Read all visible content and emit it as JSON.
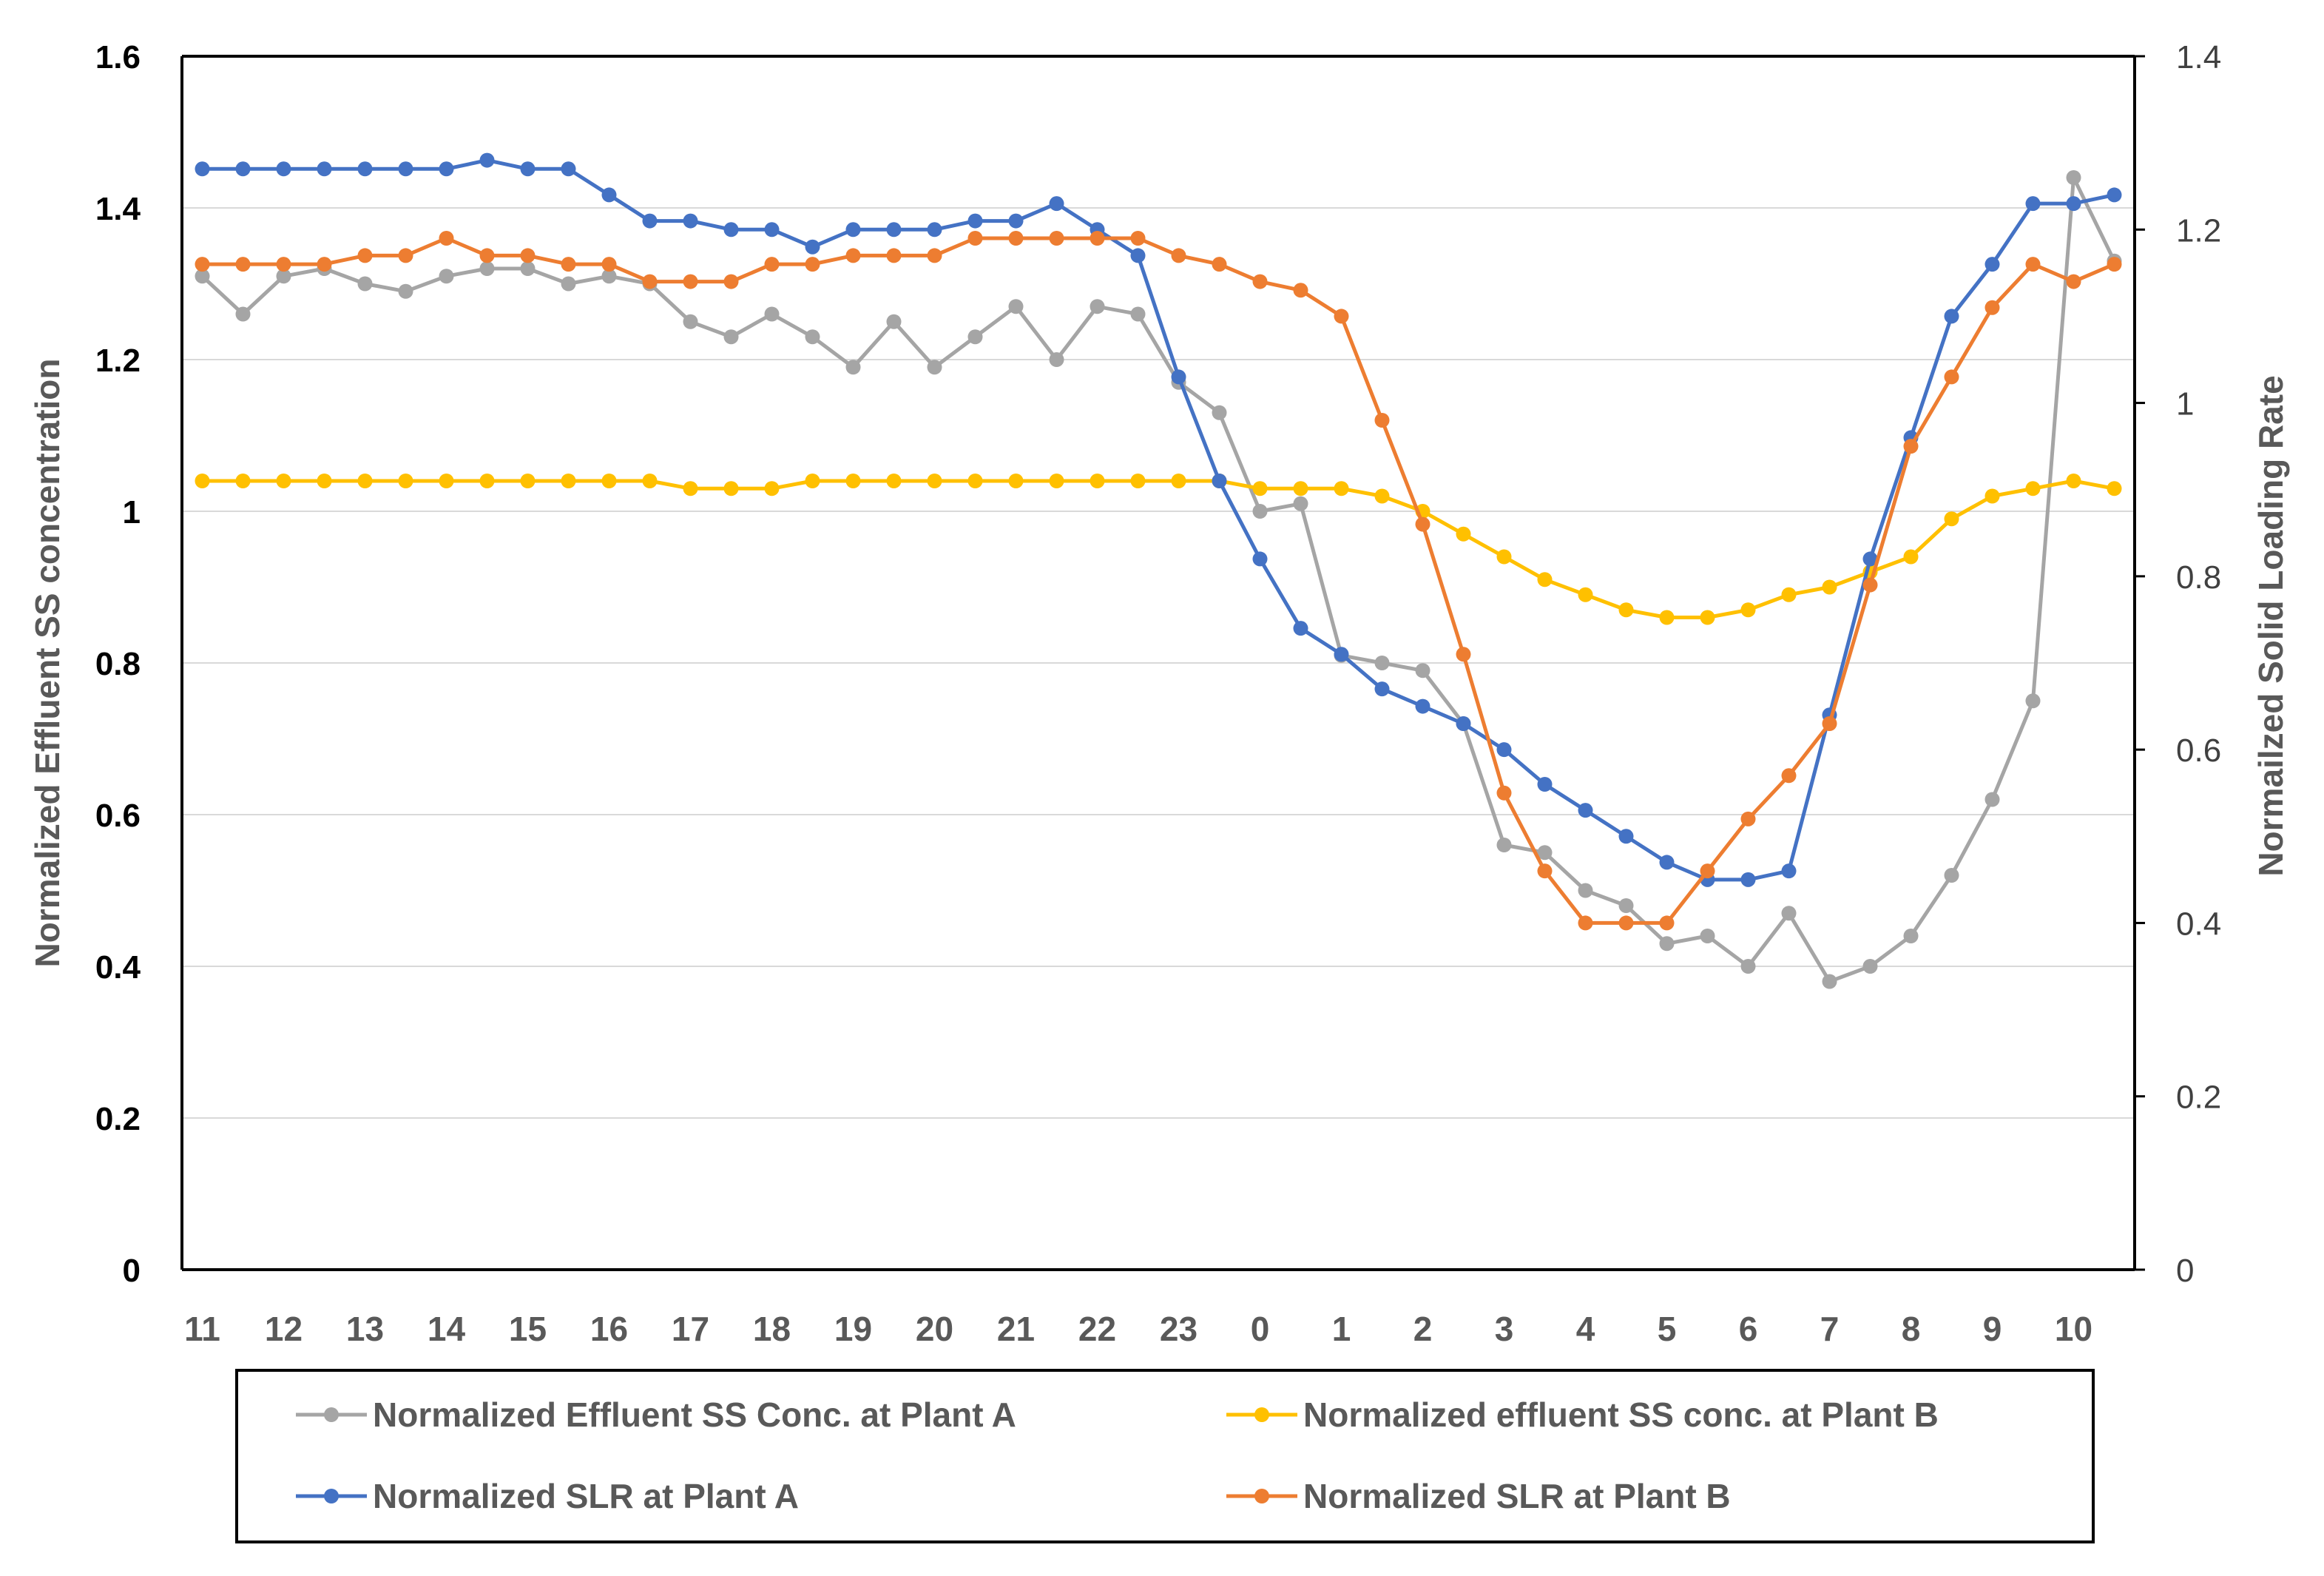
{
  "chart_data": {
    "type": "line",
    "title": "",
    "xlabel": "",
    "ylabel": "Normalized Effluent SS concentration",
    "y2label": "Normailzed Solid Loading Rate",
    "ylim": [
      0,
      1.6
    ],
    "y2lim": [
      0,
      1.4
    ],
    "y_ticks": [
      "0",
      "0.2",
      "0.4",
      "0.6",
      "0.8",
      "1",
      "1.2",
      "1.4",
      "1.6"
    ],
    "y2_ticks": [
      "0",
      "0.2",
      "0.4",
      "0.6",
      "0.8",
      "1",
      "1.2",
      "1.4"
    ],
    "x_tick_labels": [
      "11",
      "12",
      "13",
      "14",
      "15",
      "16",
      "17",
      "18",
      "19",
      "20",
      "21",
      "22",
      "23",
      "0",
      "1",
      "2",
      "3",
      "4",
      "5",
      "6",
      "7",
      "8",
      "9",
      "10"
    ],
    "grid": true,
    "legend_position": "bottom",
    "series": [
      {
        "name": "Normalized Effluent SS Conc. at Plant A",
        "axis": "left",
        "color": "#A5A5A5",
        "values": [
          1.31,
          1.26,
          1.31,
          1.32,
          1.3,
          1.29,
          1.31,
          1.32,
          1.32,
          1.3,
          1.31,
          1.3,
          1.25,
          1.23,
          1.26,
          1.23,
          1.19,
          1.25,
          1.19,
          1.23,
          1.27,
          1.2,
          1.27,
          1.26,
          1.17,
          1.13,
          1.0,
          1.01,
          0.81,
          0.8,
          0.79,
          0.72,
          0.56,
          0.55,
          0.5,
          0.48,
          0.43,
          0.44,
          0.4,
          0.47,
          0.38,
          0.4,
          0.44,
          0.52,
          0.62,
          0.75,
          1.44,
          1.33
        ]
      },
      {
        "name": "Normalized effluent SS conc. at Plant B",
        "axis": "left",
        "color": "#FFC000",
        "values": [
          1.04,
          1.04,
          1.04,
          1.04,
          1.04,
          1.04,
          1.04,
          1.04,
          1.04,
          1.04,
          1.04,
          1.04,
          1.03,
          1.03,
          1.03,
          1.04,
          1.04,
          1.04,
          1.04,
          1.04,
          1.04,
          1.04,
          1.04,
          1.04,
          1.04,
          1.04,
          1.03,
          1.03,
          1.03,
          1.02,
          1.0,
          0.97,
          0.94,
          0.91,
          0.89,
          0.87,
          0.86,
          0.86,
          0.87,
          0.89,
          0.9,
          0.92,
          0.94,
          0.99,
          1.02,
          1.03,
          1.04,
          1.03
        ]
      },
      {
        "name": "Normalized SLR at Plant A",
        "axis": "right",
        "color": "#4472C4",
        "values": [
          1.27,
          1.27,
          1.27,
          1.27,
          1.27,
          1.27,
          1.27,
          1.28,
          1.27,
          1.27,
          1.24,
          1.21,
          1.21,
          1.2,
          1.2,
          1.18,
          1.2,
          1.2,
          1.2,
          1.21,
          1.21,
          1.23,
          1.2,
          1.17,
          1.03,
          0.91,
          0.82,
          0.74,
          0.71,
          0.67,
          0.65,
          0.63,
          0.6,
          0.56,
          0.53,
          0.5,
          0.47,
          0.45,
          0.45,
          0.46,
          0.64,
          0.82,
          0.96,
          1.1,
          1.16,
          1.23,
          1.23,
          1.24
        ]
      },
      {
        "name": "Normalized SLR at Plant B",
        "axis": "right",
        "color": "#ED7D31",
        "values": [
          1.16,
          1.16,
          1.16,
          1.16,
          1.17,
          1.17,
          1.19,
          1.17,
          1.17,
          1.16,
          1.16,
          1.14,
          1.14,
          1.14,
          1.16,
          1.16,
          1.17,
          1.17,
          1.17,
          1.19,
          1.19,
          1.19,
          1.19,
          1.19,
          1.17,
          1.16,
          1.14,
          1.13,
          1.1,
          0.98,
          0.86,
          0.71,
          0.55,
          0.46,
          0.4,
          0.4,
          0.4,
          0.46,
          0.52,
          0.57,
          0.63,
          0.79,
          0.95,
          1.03,
          1.11,
          1.16,
          1.14,
          1.16
        ]
      }
    ]
  }
}
